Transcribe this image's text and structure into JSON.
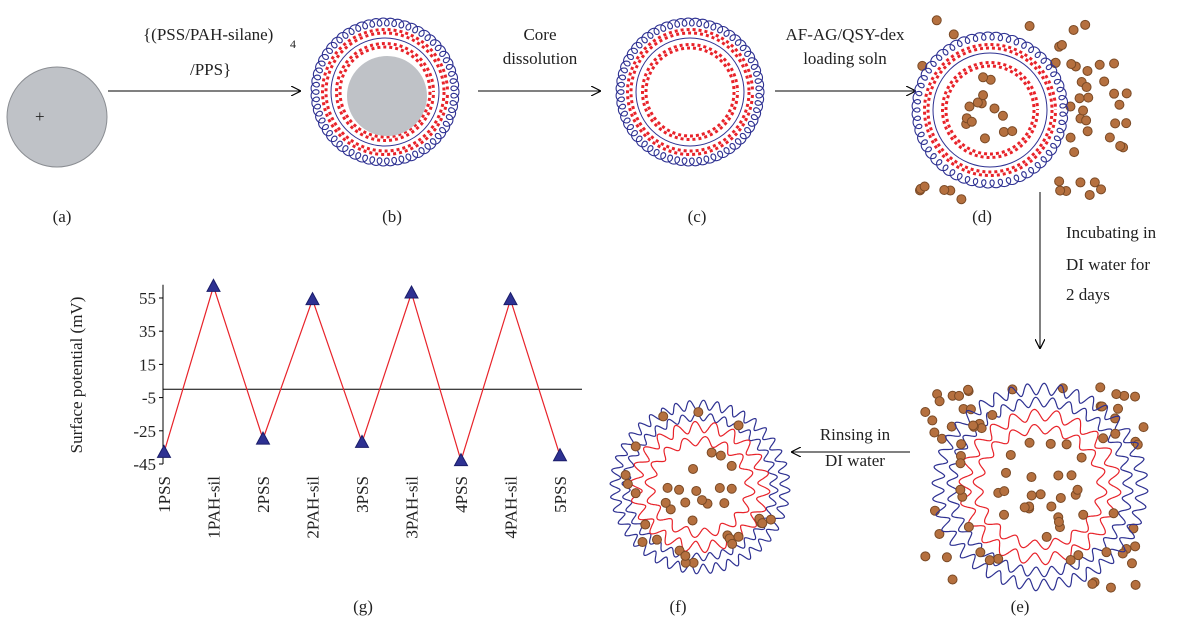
{
  "diagram": {
    "step_ab": {
      "line1": "{(PSS/PAH-silane)",
      "subscript": "4",
      "line2": "/PPS}"
    },
    "step_bc": {
      "line1": "Core",
      "line2": "dissolution"
    },
    "step_cd": {
      "line1": "AF-AG/QSY-dex",
      "line2": "loading soln"
    },
    "step_de": {
      "line1": "Incubating in",
      "line2": "DI water for",
      "line3": "2 days"
    },
    "step_ef": {
      "line1": "Rinsing in",
      "line2": "DI water"
    },
    "core_sign": "+",
    "labels": {
      "a": "(a)",
      "b": "(b)",
      "c": "(c)",
      "d": "(d)",
      "e": "(e)",
      "f": "(f)",
      "g": "(g)"
    }
  },
  "chart_data": {
    "type": "line",
    "y_label": "Surface potential (mV)",
    "categories": [
      "1PSS",
      "1PAH-sil",
      "2PSS",
      "2PAH-sil",
      "3PSS",
      "3PAH-sil",
      "4PSS",
      "4PAH-sil",
      "5PSS"
    ],
    "series": [
      {
        "color": "#e8232a",
        "marker_color": "#2e3192",
        "values": [
          -38,
          62,
          -30,
          54,
          -32,
          58,
          -43,
          54,
          -40
        ]
      }
    ],
    "ylim": [
      -45,
      63
    ],
    "yticks": [
      -45,
      -25,
      -5,
      15,
      35,
      55
    ]
  }
}
